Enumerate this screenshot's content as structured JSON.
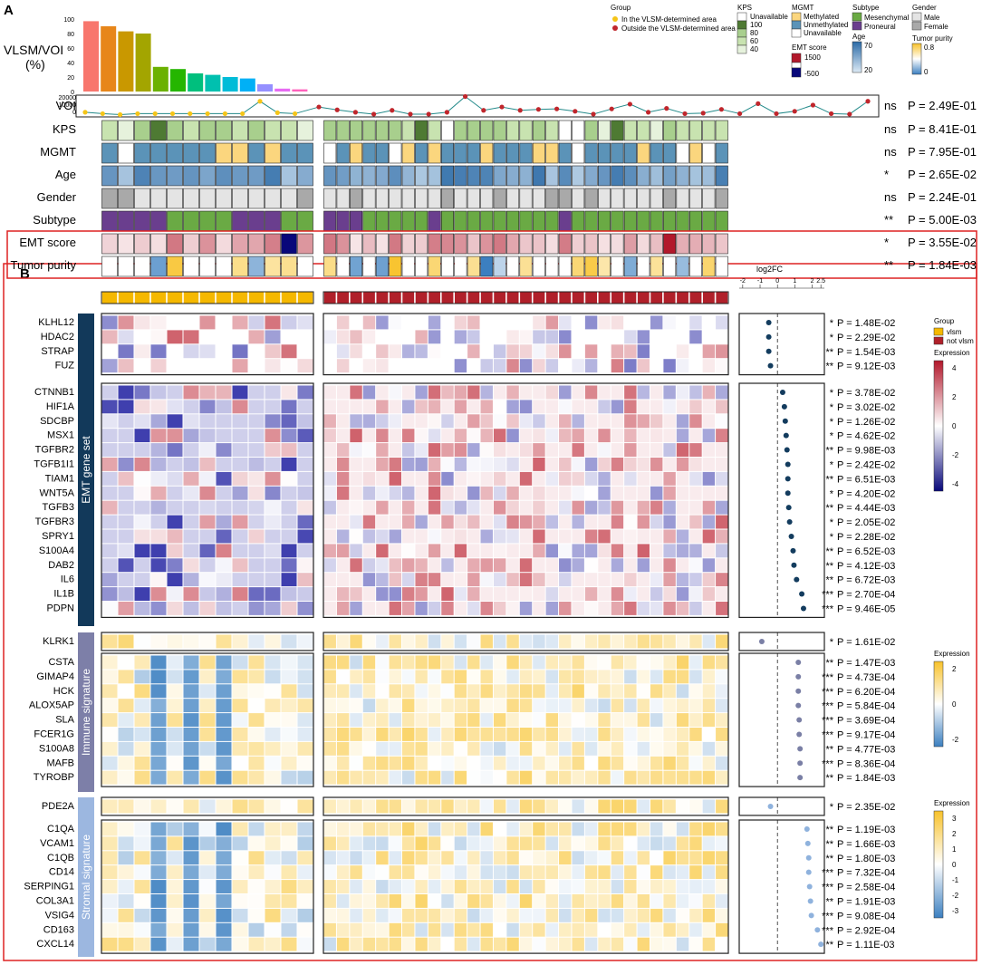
{
  "panel_a": {
    "letter": "A",
    "bar_ylabel": [
      "VLSM/VOI",
      "(%)"
    ],
    "bar_ticks": [
      0,
      20,
      40,
      60,
      80,
      100
    ],
    "bar_values": [
      97,
      90,
      83,
      80,
      34,
      31,
      25,
      23,
      20,
      18,
      10,
      4,
      3
    ],
    "bar_colors": [
      "#f8766d",
      "#e7861a",
      "#c99800",
      "#a3a500",
      "#6bb100",
      "#25b600",
      "#00bf7d",
      "#00c0af",
      "#00bcd8",
      "#00b0f6",
      "#9590ff",
      "#e76bf3",
      "#ff62bc"
    ],
    "voi": {
      "label": "VOI",
      "ticks": [
        "20000",
        "10000",
        "0"
      ],
      "in_values": [
        3,
        1.5,
        0.5,
        1.5,
        1.5,
        1.5,
        1.5,
        1.5,
        1.5,
        1.5,
        14.5,
        2.5,
        1.5
      ],
      "out_values": [
        8.5,
        5.5,
        3,
        1,
        5,
        1,
        1,
        3,
        19.5,
        5,
        8.5,
        5,
        6,
        6.5,
        4,
        1,
        6.5,
        11.5,
        3,
        7,
        1.5,
        2,
        6,
        1.5,
        12,
        1.5,
        4,
        10.5,
        1.5,
        1,
        14.5
      ]
    },
    "legend": {
      "group_title": "Group",
      "group_in": "In the VLSM-determined area",
      "group_out": "Outside the VLSM-determined area",
      "kps_title": "KPS",
      "kps_items": [
        "Unavailable",
        "100",
        "80",
        "60",
        "40"
      ],
      "mgmt_title": "MGMT",
      "mgmt_items": [
        "Methylated",
        "Unmethylated",
        "Unavailable"
      ],
      "emt_title": "EMT score",
      "emt_max": "1500",
      "emt_min": "-500",
      "subtype_title": "Subtype",
      "subtype_items": [
        "Mesenchymal",
        "Proneural"
      ],
      "age_title": "Age",
      "age_max": "70",
      "age_min": "20",
      "gender_title": "Gender",
      "gender_items": [
        "Male",
        "Female"
      ],
      "purity_title": "Tumor purity",
      "purity_max": "0.8",
      "purity_min": "0"
    },
    "clinical_rows": [
      {
        "label": "VOI",
        "sig": "ns",
        "p": "P = 2.49E-01"
      },
      {
        "label": "KPS",
        "sig": "ns",
        "p": "P = 8.41E-01"
      },
      {
        "label": "MGMT",
        "sig": "ns",
        "p": "P = 7.95E-01"
      },
      {
        "label": "Age",
        "sig": "*",
        "p": "P = 2.65E-02"
      },
      {
        "label": "Gender",
        "sig": "ns",
        "p": "P = 2.24E-01"
      },
      {
        "label": "Subtype",
        "sig": "**",
        "p": "P = 5.00E-03"
      },
      {
        "label": "EMT score",
        "sig": "*",
        "p": "P = 3.55E-02"
      },
      {
        "label": "Tumor purity",
        "sig": "**",
        "p": "P = 1.84E-03"
      }
    ]
  },
  "panel_b": {
    "letter": "B",
    "logfc_title": "log2FC",
    "logfc_ticks": [
      "-2",
      "-1",
      "0",
      "1",
      "2",
      "2.5"
    ],
    "group_legend_title": "Group",
    "group_legend_items": [
      "vlsm",
      "not vlsm"
    ],
    "expr_legends": [
      {
        "title": "Expression",
        "ticks": [
          "4",
          "2",
          "0",
          "-2",
          "-4"
        ]
      },
      {
        "title": "Expression",
        "ticks": [
          "2",
          "0",
          "-2"
        ]
      },
      {
        "title": "Expression",
        "ticks": [
          "3",
          "2",
          "1",
          "0",
          "-1",
          "-2",
          "-3"
        ]
      }
    ],
    "sections": [
      {
        "name": "EMT gene set",
        "genes": [
          {
            "g": "KLHL12",
            "sig": "*",
            "p": "P = 1.48E-02",
            "fc": -0.5
          },
          {
            "g": "HDAC2",
            "sig": "*",
            "p": "P = 2.29E-02",
            "fc": -0.5
          },
          {
            "g": "STRAP",
            "sig": "**",
            "p": "P = 1.54E-03",
            "fc": -0.5
          },
          {
            "g": "FUZ",
            "sig": "**",
            "p": "P = 9.12E-03",
            "fc": -0.4
          },
          {
            "g": "CTNNB1",
            "sig": "*",
            "p": "P = 3.78E-02",
            "fc": 0.3
          },
          {
            "g": "HIF1A",
            "sig": "*",
            "p": "P = 3.02E-02",
            "fc": 0.4
          },
          {
            "g": "SDCBP",
            "sig": "*",
            "p": "P = 1.26E-02",
            "fc": 0.45
          },
          {
            "g": "MSX1",
            "sig": "*",
            "p": "P = 4.62E-02",
            "fc": 0.5
          },
          {
            "g": "TGFBR2",
            "sig": "**",
            "p": "P = 9.98E-03",
            "fc": 0.55
          },
          {
            "g": "TGFB1I1",
            "sig": "*",
            "p": "P = 2.42E-02",
            "fc": 0.6
          },
          {
            "g": "TIAM1",
            "sig": "**",
            "p": "P = 6.51E-03",
            "fc": 0.6
          },
          {
            "g": "WNT5A",
            "sig": "*",
            "p": "P = 4.20E-02",
            "fc": 0.6
          },
          {
            "g": "TGFB3",
            "sig": "**",
            "p": "P = 4.44E-03",
            "fc": 0.65
          },
          {
            "g": "TGFBR3",
            "sig": "*",
            "p": "P = 2.05E-02",
            "fc": 0.7
          },
          {
            "g": "SPRY1",
            "sig": "*",
            "p": "P = 2.28E-02",
            "fc": 0.8
          },
          {
            "g": "S100A4",
            "sig": "**",
            "p": "P = 6.52E-03",
            "fc": 0.9
          },
          {
            "g": "DAB2",
            "sig": "**",
            "p": "P = 4.12E-03",
            "fc": 0.95
          },
          {
            "g": "IL6",
            "sig": "**",
            "p": "P = 6.72E-03",
            "fc": 1.1
          },
          {
            "g": "IL1B",
            "sig": "***",
            "p": "P = 2.70E-04",
            "fc": 1.4
          },
          {
            "g": "PDPN",
            "sig": "***",
            "p": "P = 9.46E-05",
            "fc": 1.5
          }
        ]
      },
      {
        "name": "Immune signature",
        "genes": [
          {
            "g": "KLRK1",
            "sig": "*",
            "p": "P = 1.61E-02",
            "fc": -0.9
          },
          {
            "g": "CSTA",
            "sig": "**",
            "p": "P = 1.47E-03",
            "fc": 1.2
          },
          {
            "g": "GIMAP4",
            "sig": "***",
            "p": "P = 4.73E-04",
            "fc": 1.2
          },
          {
            "g": "HCK",
            "sig": "***",
            "p": "P = 6.20E-04",
            "fc": 1.2
          },
          {
            "g": "ALOX5AP",
            "sig": "***",
            "p": "P = 5.84E-04",
            "fc": 1.2
          },
          {
            "g": "SLA",
            "sig": "***",
            "p": "P = 3.69E-04",
            "fc": 1.25
          },
          {
            "g": "FCER1G",
            "sig": "***",
            "p": "P = 9.17E-04",
            "fc": 1.25
          },
          {
            "g": "S100A8",
            "sig": "**",
            "p": "P = 4.77E-03",
            "fc": 1.3
          },
          {
            "g": "MAFB",
            "sig": "***",
            "p": "P = 8.36E-04",
            "fc": 1.3
          },
          {
            "g": "TYROBP",
            "sig": "**",
            "p": "P = 1.84E-03",
            "fc": 1.3
          }
        ]
      },
      {
        "name": "Stromal signature",
        "genes": [
          {
            "g": "PDE2A",
            "sig": "*",
            "p": "P = 2.35E-02",
            "fc": -0.4
          },
          {
            "g": "C1QA",
            "sig": "**",
            "p": "P = 1.19E-03",
            "fc": 1.7
          },
          {
            "g": "VCAM1",
            "sig": "**",
            "p": "P = 1.66E-03",
            "fc": 1.75
          },
          {
            "g": "C1QB",
            "sig": "**",
            "p": "P = 1.80E-03",
            "fc": 1.8
          },
          {
            "g": "CD14",
            "sig": "***",
            "p": "P = 7.32E-04",
            "fc": 1.8
          },
          {
            "g": "SERPING1",
            "sig": "***",
            "p": "P = 2.58E-04",
            "fc": 1.85
          },
          {
            "g": "COL3A1",
            "sig": "**",
            "p": "P = 1.91E-03",
            "fc": 1.9
          },
          {
            "g": "VSIG4",
            "sig": "***",
            "p": "P = 9.08E-04",
            "fc": 1.95
          },
          {
            "g": "CD163",
            "sig": "***",
            "p": "P = 2.92E-04",
            "fc": 2.3
          },
          {
            "g": "CXCL14",
            "sig": "**",
            "p": "P = 1.11E-03",
            "fc": 2.5
          }
        ]
      }
    ]
  }
}
